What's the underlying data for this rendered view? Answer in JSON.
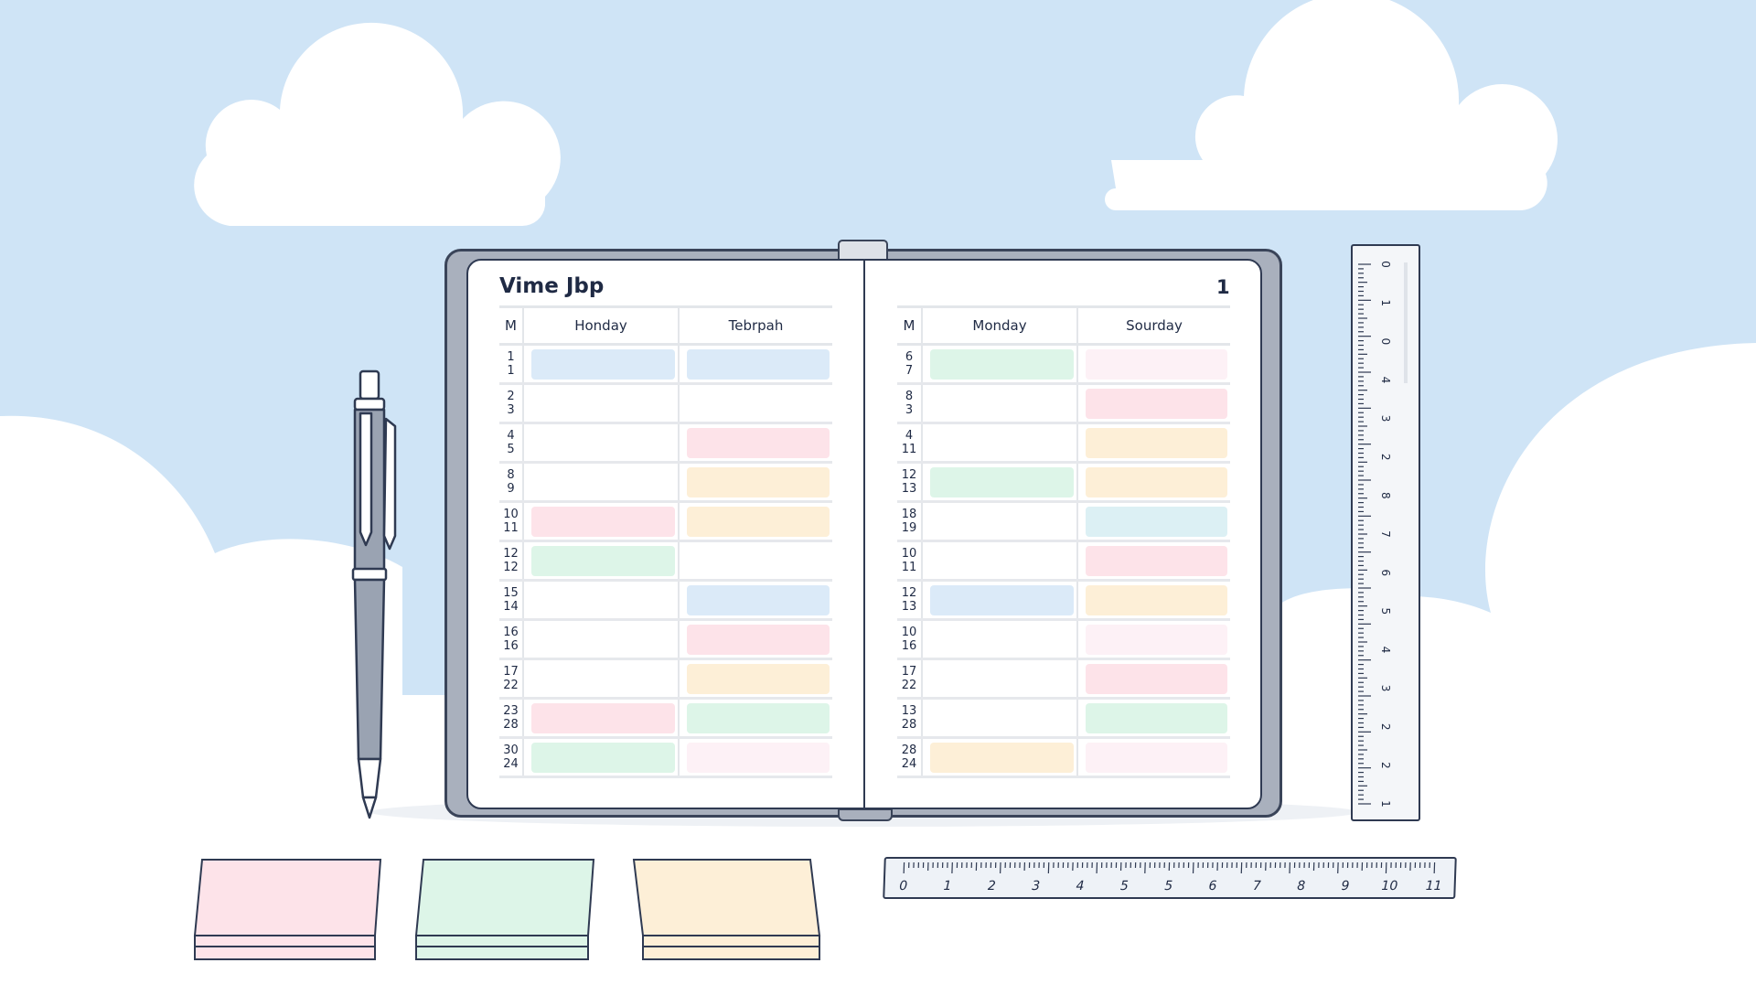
{
  "planner": {
    "left_page": {
      "title": "Vime Jbp",
      "columns": [
        "M",
        "Honday",
        "Tebrpah"
      ],
      "rows": [
        {
          "m": [
            "1",
            "1"
          ],
          "c1": "blue",
          "c2": "blue"
        },
        {
          "m": [
            "2",
            "3"
          ],
          "c1": null,
          "c2": null
        },
        {
          "m": [
            "4",
            "5"
          ],
          "c1": null,
          "c2": "pink"
        },
        {
          "m": [
            "8",
            "9"
          ],
          "c1": null,
          "c2": "orange"
        },
        {
          "m": [
            "10",
            "11"
          ],
          "c1": "pink",
          "c2": "orange"
        },
        {
          "m": [
            "12",
            "12"
          ],
          "c1": "green",
          "c2": null
        },
        {
          "m": [
            "15",
            "14"
          ],
          "c1": null,
          "c2": "blue"
        },
        {
          "m": [
            "16",
            "16"
          ],
          "c1": null,
          "c2": "pink"
        },
        {
          "m": [
            "17",
            "22"
          ],
          "c1": null,
          "c2": "orange"
        },
        {
          "m": [
            "23",
            "28"
          ],
          "c1": "pink",
          "c2": "green"
        },
        {
          "m": [
            "30",
            "24"
          ],
          "c1": "green",
          "c2": "lightpink"
        }
      ]
    },
    "right_page": {
      "page_number": "1",
      "columns": [
        "M",
        "Monday",
        "Sourday"
      ],
      "rows": [
        {
          "m": [
            "6",
            "7"
          ],
          "c1": "green",
          "c2": "lightpink"
        },
        {
          "m": [
            "8",
            "3"
          ],
          "c1": null,
          "c2": "pink"
        },
        {
          "m": [
            "4",
            "11"
          ],
          "c1": null,
          "c2": "orange"
        },
        {
          "m": [
            "12",
            "13"
          ],
          "c1": "green",
          "c2": "orange"
        },
        {
          "m": [
            "18",
            "19"
          ],
          "c1": null,
          "c2": "teal"
        },
        {
          "m": [
            "10",
            "11"
          ],
          "c1": null,
          "c2": "pink"
        },
        {
          "m": [
            "12",
            "13"
          ],
          "c1": "blue",
          "c2": "orange"
        },
        {
          "m": [
            "10",
            "16"
          ],
          "c1": null,
          "c2": "lightpink"
        },
        {
          "m": [
            "17",
            "22"
          ],
          "c1": null,
          "c2": "pink"
        },
        {
          "m": [
            "13",
            "28"
          ],
          "c1": null,
          "c2": "green"
        },
        {
          "m": [
            "28",
            "24"
          ],
          "c1": "orange",
          "c2": "lightpink"
        }
      ]
    }
  },
  "colors": {
    "blue": "#dbeaf8",
    "pink": "#fde3e9",
    "orange": "#fdefd7",
    "green": "#ddf5e8",
    "lightpink": "#fdf1f6",
    "teal": "#dcf0f4",
    "sky": "#cfe4f6",
    "outline": "#2f3a52"
  },
  "horizontal_ruler": {
    "labels": [
      "0",
      "1",
      "2",
      "3",
      "4",
      "5",
      "5",
      "6",
      "7",
      "8",
      "9",
      "10",
      "11"
    ]
  },
  "vertical_ruler": {
    "labels": [
      "0",
      "1",
      "0",
      "4",
      "3",
      "2",
      "8",
      "7",
      "6",
      "5",
      "4",
      "3",
      "2",
      "2",
      "1"
    ]
  },
  "sticky_notes": [
    "pink",
    "green",
    "orange"
  ],
  "icons": [
    "pen-icon",
    "ruler-icon",
    "cloud-icon",
    "sticky-note-icon",
    "bookmark-icon"
  ]
}
